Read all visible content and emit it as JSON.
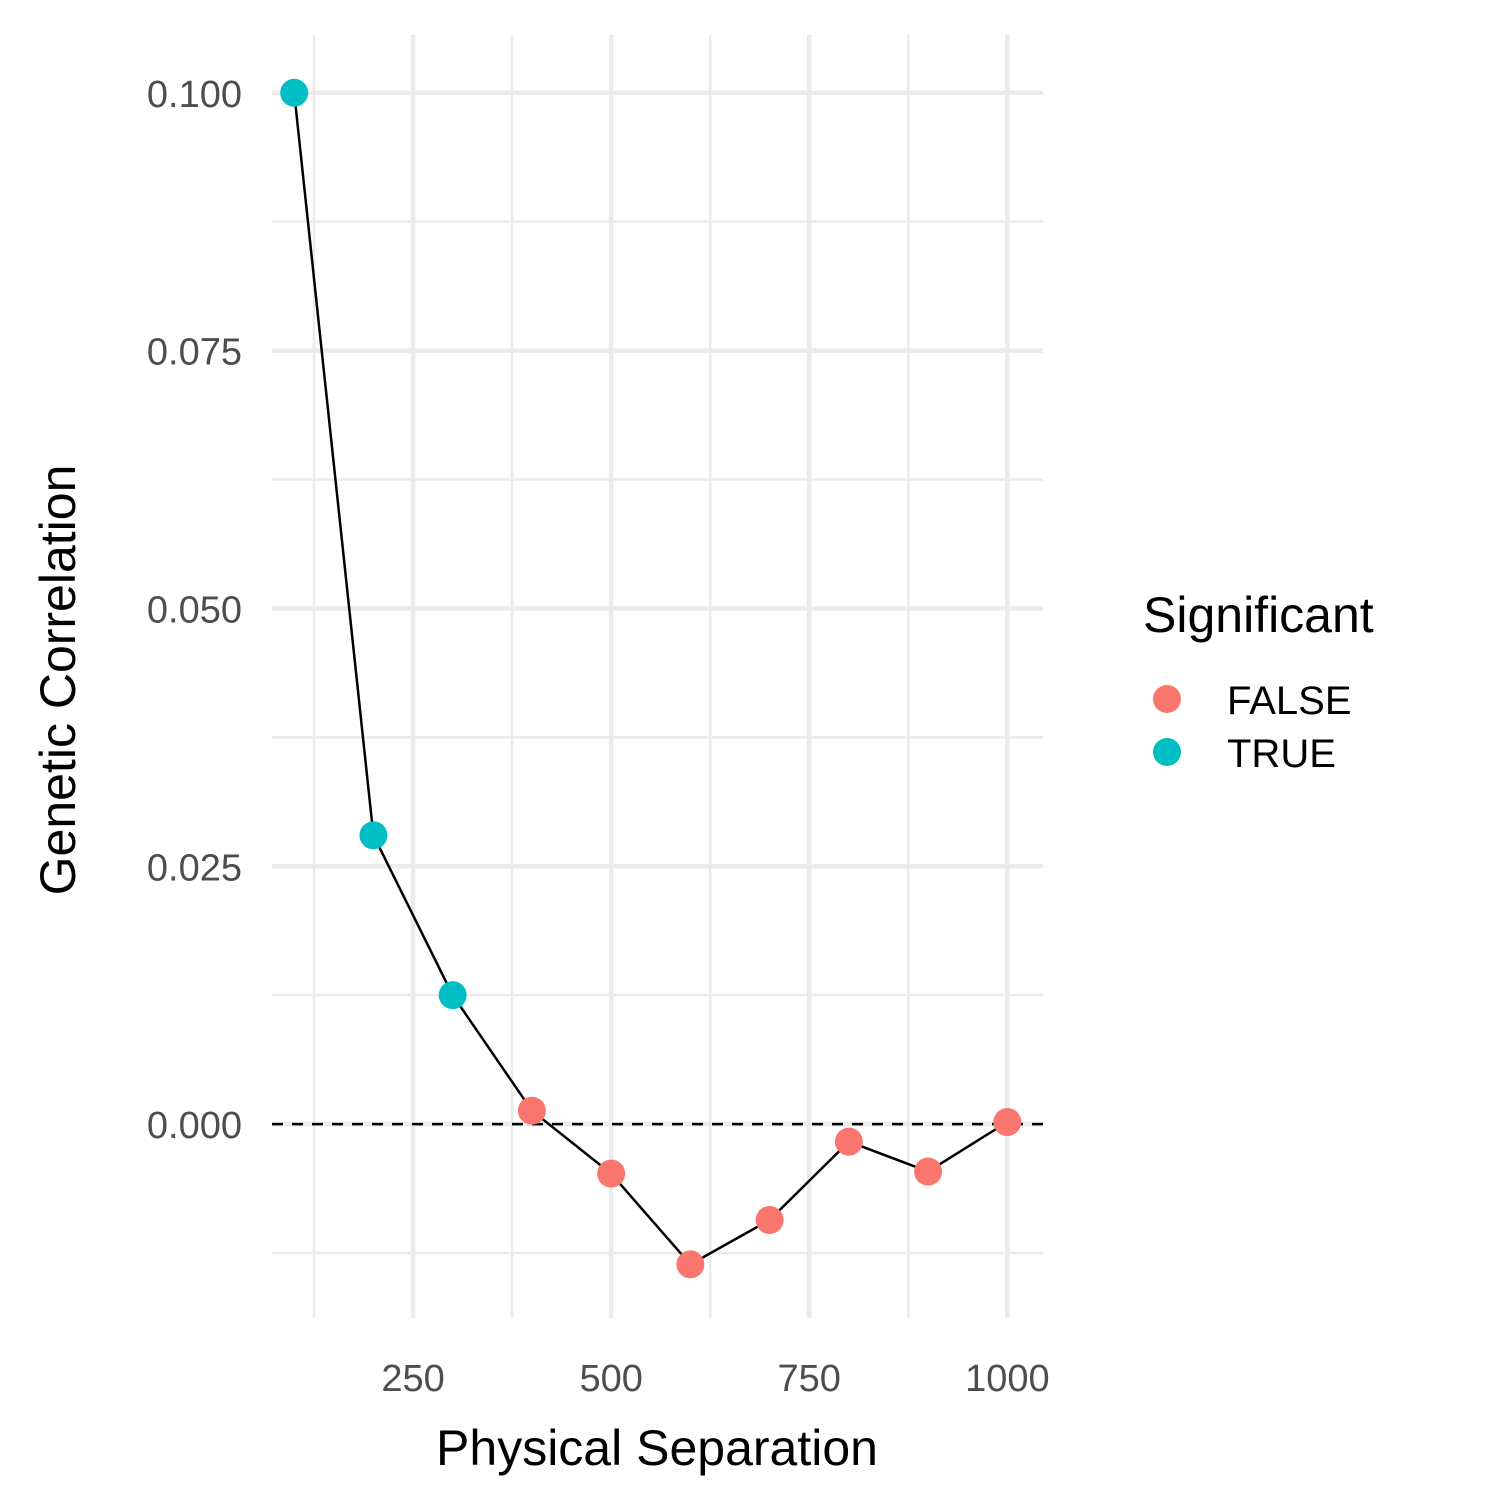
{
  "chart_data": {
    "type": "scatter",
    "xlabel": "Physical Separation",
    "ylabel": "Genetic Correlation",
    "xlim": [
      72,
      1045
    ],
    "ylim": [
      -0.0188,
      0.1056
    ],
    "x_ticks": [
      250,
      500,
      750,
      1000
    ],
    "x_minor_ticks": [
      125,
      375,
      625,
      875
    ],
    "y_ticks": [
      0.0,
      0.025,
      0.05,
      0.075,
      0.1
    ],
    "y_tick_labels": [
      "0.000",
      "0.025",
      "0.050",
      "0.075",
      "0.100"
    ],
    "y_minor_ticks": [
      -0.0125,
      0.0125,
      0.0375,
      0.0625,
      0.0875
    ],
    "grid": true,
    "reference_line": {
      "y": 0,
      "style": "dashed"
    },
    "legend": {
      "title": "Significant",
      "position": "right",
      "entries": [
        {
          "label": "FALSE",
          "color": "#F8766D"
        },
        {
          "label": "TRUE",
          "color": "#00BFC4"
        }
      ]
    },
    "points": [
      {
        "x": 100,
        "y": 0.1,
        "significant": "TRUE"
      },
      {
        "x": 200,
        "y": 0.028,
        "significant": "TRUE"
      },
      {
        "x": 300,
        "y": 0.0125,
        "significant": "TRUE"
      },
      {
        "x": 400,
        "y": 0.0013,
        "significant": "FALSE"
      },
      {
        "x": 500,
        "y": -0.0048,
        "significant": "FALSE"
      },
      {
        "x": 600,
        "y": -0.0136,
        "significant": "FALSE"
      },
      {
        "x": 700,
        "y": -0.0093,
        "significant": "FALSE"
      },
      {
        "x": 800,
        "y": -0.0017,
        "significant": "FALSE"
      },
      {
        "x": 900,
        "y": -0.0046,
        "significant": "FALSE"
      },
      {
        "x": 1000,
        "y": 0.0002,
        "significant": "FALSE"
      }
    ]
  }
}
